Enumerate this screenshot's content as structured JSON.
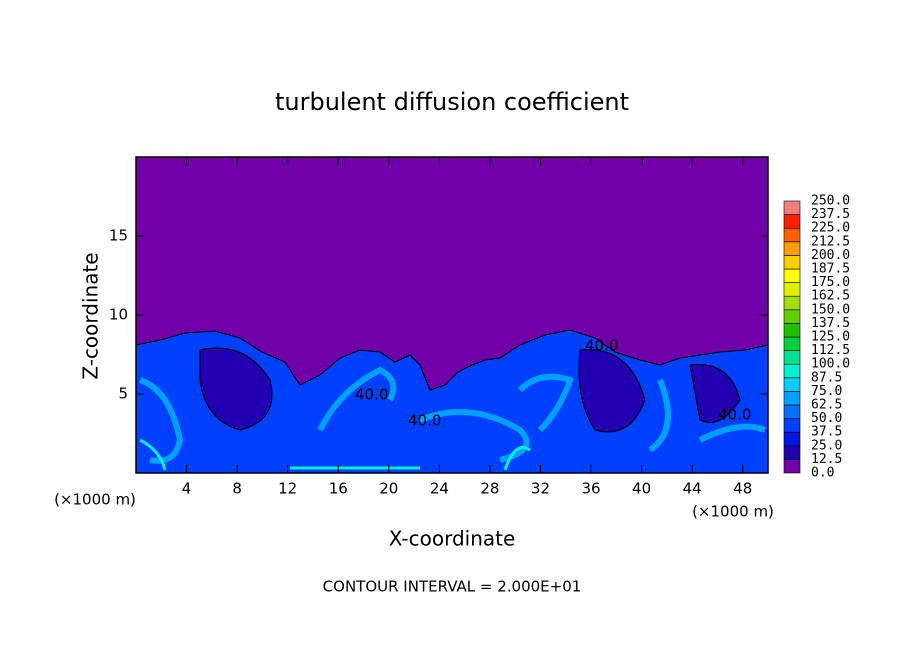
{
  "chart_data": {
    "type": "contour",
    "title": "turbulent diffusion coefficient",
    "x_label": "X-coordinate",
    "y_label": "Z-coordinate",
    "x_unit": "(×1000 m)",
    "footer": "CONTOUR INTERVAL = 2.000E+01",
    "contour_labels": [
      "40.0",
      "40.0",
      "40.0",
      "40.0"
    ],
    "xlim": [
      0,
      50
    ],
    "xticks": [
      4,
      8,
      12,
      16,
      20,
      24,
      28,
      32,
      36,
      40,
      44,
      48
    ],
    "ylim": [
      0,
      20
    ],
    "yticks": [
      5,
      10,
      15
    ],
    "levels": [
      {
        "value": 0,
        "label": "0.0"
      },
      {
        "value": 12.5,
        "label": "12.5"
      },
      {
        "value": 25,
        "label": "25.0"
      },
      {
        "value": 37.5,
        "label": "37.5"
      },
      {
        "value": 50,
        "label": "50.0"
      },
      {
        "value": 62.5,
        "label": "62.5"
      },
      {
        "value": 75,
        "label": "75.0"
      },
      {
        "value": 87.5,
        "label": "87.5"
      },
      {
        "value": 100,
        "label": "100.0"
      },
      {
        "value": 112.5,
        "label": "112.5"
      },
      {
        "value": 125,
        "label": "125.0"
      },
      {
        "value": 137.5,
        "label": "137.5"
      },
      {
        "value": 150,
        "label": "150.0"
      },
      {
        "value": 162.5,
        "label": "162.5"
      },
      {
        "value": 175,
        "label": "175.0"
      },
      {
        "value": 187.5,
        "label": "187.5"
      },
      {
        "value": 200,
        "label": "200.0"
      },
      {
        "value": 212.5,
        "label": "212.5"
      },
      {
        "value": 225,
        "label": "225.0"
      },
      {
        "value": 237.5,
        "label": "237.5"
      },
      {
        "value": 250,
        "label": "250.0"
      }
    ],
    "level_colors": [
      "#7000a8",
      "#2000b0",
      "#0018e0",
      "#0040ff",
      "#0070ff",
      "#00a0ff",
      "#00d0ff",
      "#00f0d0",
      "#00e090",
      "#00d040",
      "#20c000",
      "#60d000",
      "#a0e000",
      "#e0f000",
      "#ffff00",
      "#ffd000",
      "#ffa000",
      "#ff6000",
      "#ff2000",
      "#f08080"
    ]
  }
}
